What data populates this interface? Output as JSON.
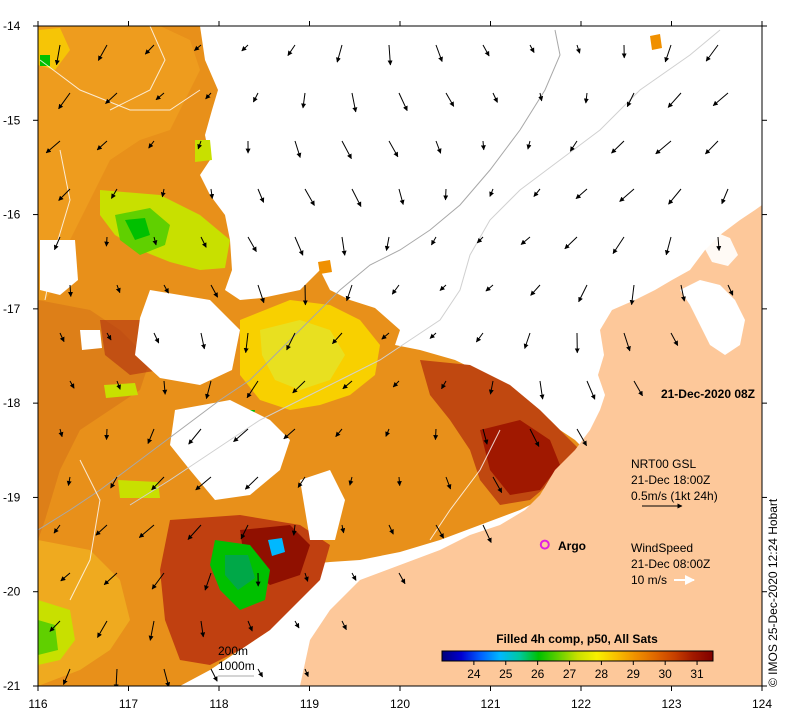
{
  "chart_data": {
    "type": "heatmap",
    "title": "",
    "xlim": [
      116,
      124
    ],
    "ylim": [
      -21,
      -14
    ],
    "x_ticks": [
      "116",
      "117",
      "118",
      "119",
      "120",
      "121",
      "122",
      "123",
      "124"
    ],
    "y_ticks": [
      "-14",
      "-15",
      "-16",
      "-17",
      "-18",
      "-19",
      "-20",
      "-21"
    ],
    "timestamp": "21-Dec-2020 08Z",
    "colorbar": {
      "title": "Filled 4h comp, p50, All Sats",
      "range": [
        23,
        31.5
      ],
      "tick_labels": [
        "24",
        "25",
        "26",
        "27",
        "28",
        "29",
        "30",
        "31"
      ],
      "colors": [
        "#00007a",
        "#0000d0",
        "#0060ff",
        "#00b8ff",
        "#00c8a0",
        "#00c000",
        "#60d000",
        "#c8e000",
        "#f8f000",
        "#f8c000",
        "#f09000",
        "#e06800",
        "#c84000",
        "#a01800",
        "#800000"
      ]
    },
    "current_legend": {
      "line1": "NRT00 GSL",
      "line2": "21-Dec 18:00Z",
      "line3": "0.5m/s (1kt 24h)"
    },
    "wind_legend": {
      "line1": "WindSpeed",
      "line2": "21-Dec 08:00Z",
      "line3": "10 m/s"
    },
    "argo_label": "Argo",
    "argo_position": {
      "lon": 121.6,
      "lat": -19.5
    },
    "isobath_legend": [
      "200m",
      "1000m"
    ],
    "colors": {
      "land": "#fdc89a",
      "no_data": "#ffffff",
      "argo": "#e020e0",
      "isobath_200": "#d0d0d0",
      "isobath_1000": "#a8a8a8"
    }
  },
  "credit": "© IMOS 25-Dec-2020 12:24 Hobart"
}
